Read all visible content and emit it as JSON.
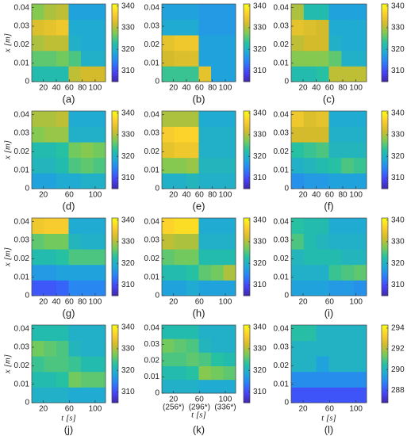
{
  "colormap": [
    "#3e26a8",
    "#4743f8",
    "#2b7ef8",
    "#1fa8d9",
    "#26c0a3",
    "#7bcb56",
    "#d3bb2c",
    "#fcce2e",
    "#f9fb15"
  ],
  "chart_data": [
    {
      "type": "heatmap",
      "label": "(a)",
      "ylabel": "x [m]",
      "xlim": [
        2,
        116
      ],
      "ylim": [
        0,
        0.042
      ],
      "xticks": [
        20,
        40,
        60,
        80,
        100
      ],
      "yticks": [
        0,
        0.01,
        0.02,
        0.03,
        0.04
      ],
      "clim": [
        305,
        341
      ],
      "cticks": [
        310,
        320,
        330,
        340
      ],
      "xbins": [
        2,
        21,
        40,
        59,
        78,
        97,
        116
      ],
      "ybins": [
        0,
        0.0084,
        0.0168,
        0.0252,
        0.0336,
        0.042
      ],
      "z": [
        [
          322,
          322,
          322,
          331,
          332,
          332
        ],
        [
          326,
          326,
          327,
          325,
          320,
          320
        ],
        [
          330,
          331,
          331,
          320,
          319,
          319
        ],
        [
          333,
          334,
          335,
          319,
          319,
          319
        ],
        [
          328,
          330,
          331,
          318,
          318,
          318
        ]
      ]
    },
    {
      "type": "heatmap",
      "label": "(b)",
      "xlim": [
        2,
        116
      ],
      "ylim": [
        0,
        0.042
      ],
      "xticks": [
        20,
        40,
        60,
        80,
        100
      ],
      "yticks": [
        0,
        0.01,
        0.02,
        0.03,
        0.04
      ],
      "clim": [
        305,
        341
      ],
      "cticks": [
        310,
        320,
        330,
        340
      ],
      "xbins": [
        2,
        21,
        40,
        59,
        78,
        97,
        116
      ],
      "ybins": [
        0,
        0.0084,
        0.0168,
        0.0252,
        0.0336,
        0.042
      ],
      "z": [
        [
          324,
          324,
          324,
          334,
          318,
          318
        ],
        [
          332,
          333,
          333,
          318,
          318,
          318
        ],
        [
          334,
          335,
          335,
          318,
          318,
          318
        ],
        [
          319,
          319,
          319,
          317,
          317,
          317
        ],
        [
          318,
          318,
          318,
          317,
          317,
          317
        ]
      ]
    },
    {
      "type": "heatmap",
      "label": "(c)",
      "xlim": [
        2,
        116
      ],
      "ylim": [
        0,
        0.042
      ],
      "xticks": [
        20,
        40,
        60,
        80,
        100
      ],
      "yticks": [
        0,
        0.01,
        0.02,
        0.03,
        0.04
      ],
      "clim": [
        305,
        341
      ],
      "cticks": [
        310,
        320,
        330,
        340
      ],
      "xbins": [
        2,
        21,
        40,
        59,
        78,
        97,
        116
      ],
      "ybins": [
        0,
        0.0084,
        0.0168,
        0.0252,
        0.0336,
        0.042
      ],
      "z": [
        [
          322,
          322,
          323,
          331,
          331,
          331
        ],
        [
          328,
          328,
          328,
          326,
          320,
          320
        ],
        [
          331,
          332,
          332,
          320,
          319,
          319
        ],
        [
          334,
          333,
          332,
          319,
          319,
          319
        ],
        [
          330,
          322,
          322,
          318,
          318,
          318
        ]
      ]
    },
    {
      "type": "heatmap",
      "label": "(d)",
      "ylabel": "x [m]",
      "xlim": [
        2,
        116
      ],
      "ylim": [
        0,
        0.042
      ],
      "xticks": [
        20,
        60,
        100
      ],
      "yticks": [
        0,
        0.01,
        0.02,
        0.03,
        0.04
      ],
      "clim": [
        305,
        341
      ],
      "cticks": [
        310,
        320,
        330,
        340
      ],
      "xbins": [
        2,
        21,
        40,
        59,
        78,
        97,
        116
      ],
      "ybins": [
        0,
        0.0084,
        0.0168,
        0.0252,
        0.0336,
        0.042
      ],
      "z": [
        [
          318,
          318,
          319,
          319,
          320,
          320
        ],
        [
          321,
          321,
          322,
          325,
          326,
          325
        ],
        [
          322,
          322,
          323,
          327,
          328,
          327
        ],
        [
          328,
          329,
          329,
          320,
          320,
          320
        ],
        [
          330,
          330,
          331,
          319,
          319,
          319
        ]
      ]
    },
    {
      "type": "heatmap",
      "label": "(e)",
      "xlim": [
        2,
        116
      ],
      "ylim": [
        0,
        0.042
      ],
      "xticks": [
        20,
        40,
        60,
        80,
        100
      ],
      "yticks": [
        0,
        0.01,
        0.02,
        0.03,
        0.04
      ],
      "clim": [
        305,
        341
      ],
      "cticks": [
        310,
        320,
        330,
        340
      ],
      "xbins": [
        2,
        21,
        40,
        59,
        78,
        97,
        116
      ],
      "ybins": [
        0,
        0.0084,
        0.0168,
        0.0252,
        0.0336,
        0.042
      ],
      "z": [
        [
          320,
          320,
          321,
          320,
          320,
          320
        ],
        [
          328,
          328,
          329,
          321,
          321,
          321
        ],
        [
          334,
          335,
          335,
          320,
          320,
          320
        ],
        [
          336,
          337,
          337,
          320,
          320,
          320
        ],
        [
          330,
          330,
          330,
          319,
          319,
          319
        ]
      ]
    },
    {
      "type": "heatmap",
      "label": "(f)",
      "xlim": [
        2,
        116
      ],
      "ylim": [
        0,
        0.042
      ],
      "xticks": [
        20,
        40,
        60,
        80,
        100
      ],
      "yticks": [
        0,
        0.01,
        0.02,
        0.03,
        0.04
      ],
      "clim": [
        305,
        341
      ],
      "cticks": [
        310,
        320,
        330,
        340
      ],
      "xbins": [
        2,
        21,
        40,
        59,
        78,
        97,
        116
      ],
      "ybins": [
        0,
        0.0084,
        0.0168,
        0.0252,
        0.0336,
        0.042
      ],
      "z": [
        [
          316,
          317,
          317,
          318,
          318,
          318
        ],
        [
          320,
          321,
          322,
          323,
          325,
          324
        ],
        [
          323,
          324,
          325,
          321,
          321,
          321
        ],
        [
          332,
          332,
          332,
          320,
          320,
          320
        ],
        [
          335,
          333,
          334,
          319,
          319,
          319
        ]
      ]
    },
    {
      "type": "heatmap",
      "label": "(g)",
      "ylabel": "x [m]",
      "xlim": [
        2,
        116
      ],
      "ylim": [
        0,
        0.042
      ],
      "xticks": [
        20,
        40,
        60,
        80,
        100
      ],
      "yticks": [
        0,
        0.01,
        0.02,
        0.03,
        0.04
      ],
      "clim": [
        305,
        341
      ],
      "cticks": [
        310,
        320,
        330,
        340
      ],
      "xbins": [
        2,
        21,
        40,
        59,
        78,
        97,
        116
      ],
      "ybins": [
        0,
        0.0084,
        0.0168,
        0.0252,
        0.0336,
        0.042
      ],
      "z": [
        [
          311,
          311,
          312,
          315,
          315,
          315
        ],
        [
          317,
          317,
          318,
          318,
          318,
          318
        ],
        [
          322,
          322,
          323,
          325,
          325,
          325
        ],
        [
          326,
          327,
          327,
          321,
          320,
          320
        ],
        [
          335,
          336,
          336,
          319,
          319,
          319
        ]
      ]
    },
    {
      "type": "heatmap",
      "label": "(h)",
      "xlim": [
        2,
        116
      ],
      "ylim": [
        0,
        0.042
      ],
      "xticks": [
        20,
        60,
        100
      ],
      "yticks": [
        0,
        0.01,
        0.02,
        0.03,
        0.04
      ],
      "clim": [
        305,
        341
      ],
      "cticks": [
        310,
        320,
        330,
        340
      ],
      "xbins": [
        2,
        21,
        40,
        59,
        78,
        97,
        116
      ],
      "ybins": [
        0,
        0.0084,
        0.0168,
        0.0252,
        0.0336,
        0.042
      ],
      "z": [
        [
          318,
          318,
          319,
          318,
          318,
          318
        ],
        [
          322,
          322,
          323,
          326,
          327,
          330
        ],
        [
          326,
          327,
          327,
          322,
          322,
          322
        ],
        [
          331,
          330,
          330,
          320,
          320,
          320
        ],
        [
          337,
          338,
          338,
          319,
          319,
          319
        ]
      ]
    },
    {
      "type": "heatmap",
      "label": "(i)",
      "xlim": [
        2,
        116
      ],
      "ylim": [
        0,
        0.042
      ],
      "xticks": [
        20,
        60,
        100
      ],
      "yticks": [
        0,
        0.01,
        0.02,
        0.03,
        0.04
      ],
      "clim": [
        305,
        341
      ],
      "cticks": [
        310,
        320,
        330,
        340
      ],
      "xbins": [
        2,
        21,
        40,
        59,
        78,
        97,
        116
      ],
      "ybins": [
        0,
        0.0084,
        0.0168,
        0.0252,
        0.0336,
        0.042
      ],
      "z": [
        [
          318,
          318,
          318,
          317,
          317,
          316
        ],
        [
          320,
          320,
          320,
          324,
          325,
          326
        ],
        [
          321,
          322,
          322,
          322,
          321,
          321
        ],
        [
          325,
          322,
          321,
          320,
          320,
          320
        ],
        [
          323,
          322,
          322,
          319,
          319,
          319
        ]
      ]
    },
    {
      "type": "heatmap",
      "label": "(j)",
      "ylabel": "x [m]",
      "xlabel": "t [s]",
      "xlim": [
        2,
        116
      ],
      "ylim": [
        0,
        0.042
      ],
      "xticks": [
        20,
        60,
        100
      ],
      "yticks": [
        0,
        0.01,
        0.02,
        0.03,
        0.04
      ],
      "clim": [
        305,
        341
      ],
      "cticks": [
        310,
        320,
        330,
        340
      ],
      "xbins": [
        2,
        21,
        40,
        59,
        78,
        97,
        116
      ],
      "ybins": [
        0,
        0.0084,
        0.0168,
        0.0252,
        0.0336,
        0.042
      ],
      "z": [
        [
          320,
          320,
          320,
          319,
          319,
          319
        ],
        [
          322,
          322,
          323,
          327,
          326,
          326
        ],
        [
          324,
          325,
          325,
          324,
          322,
          322
        ],
        [
          327,
          326,
          325,
          321,
          320,
          320
        ],
        [
          322,
          322,
          322,
          320,
          320,
          320
        ]
      ]
    },
    {
      "type": "heatmap",
      "label": "(k)",
      "xlabel": "t [s]",
      "xlim": [
        2,
        116
      ],
      "ylim": [
        0,
        0.042
      ],
      "xticks": [
        20,
        60,
        100
      ],
      "xtick_sublabels": [
        "(256*)",
        "(296*)",
        "(336*)"
      ],
      "yticks": [
        0,
        0.01,
        0.02,
        0.03,
        0.04
      ],
      "clim": [
        305,
        341
      ],
      "cticks": [
        310,
        320,
        330,
        340
      ],
      "xbins": [
        2,
        21,
        40,
        59,
        78,
        97,
        116
      ],
      "ybins": [
        0,
        0.0084,
        0.0168,
        0.0252,
        0.0336,
        0.042
      ],
      "z": [
        [
          320,
          320,
          320,
          319,
          319,
          319
        ],
        [
          322,
          322,
          323,
          328,
          327,
          326
        ],
        [
          325,
          325,
          326,
          325,
          323,
          322
        ],
        [
          327,
          326,
          325,
          321,
          320,
          320
        ],
        [
          322,
          322,
          322,
          320,
          320,
          320
        ]
      ]
    },
    {
      "type": "heatmap",
      "label": "(l)",
      "xlabel": "t [s]",
      "xlim": [
        2,
        116
      ],
      "ylim": [
        0,
        0.042
      ],
      "xticks": [
        20,
        60,
        100
      ],
      "yticks": [
        0,
        0.01,
        0.02,
        0.03,
        0.04
      ],
      "clim": [
        286.8,
        294.3
      ],
      "cticks": [
        288,
        290,
        292,
        294
      ],
      "xbins": [
        2,
        21,
        40,
        59,
        78,
        97,
        116
      ],
      "ybins": [
        0,
        0.0084,
        0.0168,
        0.0252,
        0.0336,
        0.042
      ],
      "z": [
        [
          288,
          288,
          288,
          288,
          288,
          288
        ],
        [
          289,
          289,
          289,
          289,
          289,
          289
        ],
        [
          290,
          290,
          289.5,
          290,
          290,
          290
        ],
        [
          290,
          290,
          290,
          290,
          290,
          290
        ],
        [
          290.5,
          290.5,
          290,
          290,
          290,
          290
        ]
      ]
    }
  ]
}
